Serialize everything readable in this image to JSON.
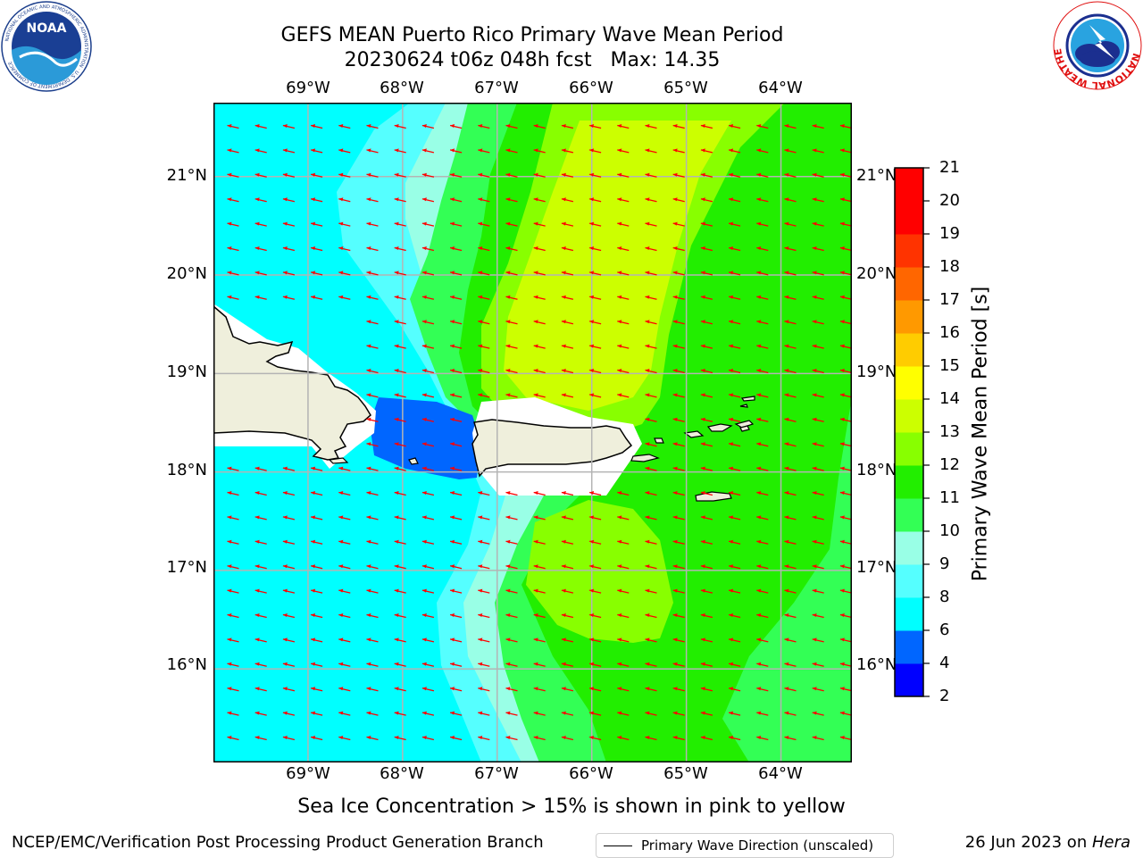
{
  "header": {
    "title_line1": "GEFS MEAN Puerto Rico Primary Wave Mean Period",
    "title_line2": "20230624 t06z 048h fcst   Max: 14.35"
  },
  "logos": {
    "left": "noaa-logo",
    "right": "national-weather-service-logo",
    "left_text": "NOAA",
    "left_ring_text": "NATIONAL OCEANIC AND ATMOSPHERIC ADMINISTRATION · U.S. DEPARTMENT OF COMMERCE",
    "right_ring_text": "NATIONAL WEATHER SERVICE"
  },
  "map": {
    "longitude_labels": [
      "69°W",
      "68°W",
      "67°W",
      "66°W",
      "65°W",
      "64°W"
    ],
    "latitude_labels": [
      "21°N",
      "20°N",
      "19°N",
      "18°N",
      "17°N",
      "16°N"
    ],
    "extent": {
      "lon_min": -70.0,
      "lon_max": -63.25,
      "lat_min": 15.05,
      "lat_max": 21.75
    },
    "gridlines": true,
    "arrow_color": "#ff0000",
    "land_color": "#efefdc",
    "coastline_color": "#000000",
    "legend_label": "Primary Wave Direction (unscaled)",
    "dominant_wave_direction": "westward",
    "field_description_note": "Sea Ice Concentration > 15% is shown in pink to yellow"
  },
  "colorbar": {
    "label": "Primary Wave Mean Period [s]",
    "ticks": [
      "2",
      "4",
      "6",
      "8",
      "9",
      "10",
      "11",
      "12",
      "13",
      "14",
      "15",
      "16",
      "17",
      "18",
      "19",
      "20",
      "21"
    ],
    "levels": [
      2,
      4,
      6,
      8,
      9,
      10,
      11,
      12,
      13,
      14,
      15,
      16,
      17,
      18,
      19,
      20,
      21
    ],
    "colors": [
      "#0000ff",
      "#0066ff",
      "#00ffff",
      "#55ffff",
      "#99ffe6",
      "#33ff55",
      "#22ee00",
      "#88ff00",
      "#ccff00",
      "#ffff00",
      "#ffcc00",
      "#ff9900",
      "#ff6600",
      "#ff3300",
      "#ff0000",
      "#ff0000"
    ]
  },
  "footer": {
    "left": "NCEP/EMC/Verification Post Processing Product Generation Branch",
    "date": "26 Jun 2023 on ",
    "host": "Hera"
  }
}
